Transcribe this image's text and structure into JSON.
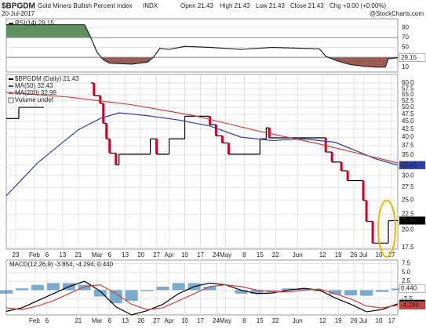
{
  "header": {
    "title": "$BPGDM",
    "subtitle": "Gold Miners Bullish Percent Index",
    "exchange": "INDX",
    "date": "20-Jul-2017",
    "quote": [
      "Open 21.43",
      "High 21.43",
      "Low 21.43",
      "Close 21.43",
      "Chg +0.00 (+0.00%)"
    ],
    "credit": "@StockCharts.com"
  },
  "chart_data": [
    {
      "type": "line",
      "xlim": [
        0,
        125
      ],
      "ylim": [
        0,
        108
      ],
      "yticks": [
        10,
        30,
        50,
        70,
        90
      ],
      "grid": true,
      "series": [
        {
          "name": "RSI(14) 29.15",
          "color": "#222222",
          "style": "line",
          "x": [
            0,
            10,
            25,
            27,
            29,
            31,
            33,
            40,
            45,
            47,
            49,
            52,
            57,
            65,
            75,
            85,
            95,
            100,
            102,
            106,
            110,
            114,
            118,
            121,
            122,
            125
          ],
          "values": [
            96,
            96,
            96,
            70,
            40,
            25,
            18,
            16,
            20,
            30,
            48,
            46,
            52,
            50,
            46,
            50,
            48,
            47,
            32,
            22,
            15,
            12,
            10,
            10,
            27,
            29.15
          ]
        }
      ],
      "fill_above": {
        "level": 70,
        "color": "#5e8f5e"
      },
      "fill_below": {
        "level": 30,
        "color": "#9c5b52"
      },
      "badges": [
        {
          "value": 29.15,
          "label": "29.15",
          "color": "#ffffff",
          "text_color": "#000000"
        }
      ]
    },
    {
      "type": "line",
      "log_scale": true,
      "xlim": [
        0,
        125
      ],
      "ylim": [
        17.3,
        64
      ],
      "grid": true,
      "yticks": [
        17.5,
        {
          "value": 20,
          "label": "20.0"
        },
        22.5,
        {
          "value": 25,
          "label": "25.0"
        },
        27.5,
        {
          "value": 30,
          "label": "30.0"
        },
        32.5,
        {
          "value": 35,
          "label": "35.0"
        },
        37.5,
        {
          "value": 40,
          "label": "40.0"
        },
        42.5,
        {
          "value": 45,
          "label": "45.0"
        },
        47.5,
        {
          "value": 50,
          "label": "50.0"
        },
        52.5,
        {
          "value": 55,
          "label": "55.0"
        },
        57.5,
        {
          "value": 60,
          "label": "60.0"
        }
      ],
      "xticks": [
        {
          "value": 3,
          "label": "23"
        },
        {
          "value": 9,
          "label": "Feb"
        },
        {
          "value": 13,
          "label": "6"
        },
        {
          "value": 18,
          "label": "13"
        },
        {
          "value": 23,
          "label": "21"
        },
        {
          "value": 29,
          "label": "Mar"
        },
        {
          "value": 33,
          "label": "6"
        },
        {
          "value": 38,
          "label": "13"
        },
        {
          "value": 43,
          "label": "20"
        },
        {
          "value": 48,
          "label": "27"
        },
        {
          "value": 52,
          "label": "Apr"
        },
        {
          "value": 57,
          "label": "10"
        },
        {
          "value": 62,
          "label": "17"
        },
        {
          "value": 67,
          "label": "24"
        },
        {
          "value": 70,
          "label": "May"
        },
        {
          "value": 76,
          "label": "8"
        },
        {
          "value": 81,
          "label": "15"
        },
        {
          "value": 86,
          "label": "22"
        },
        {
          "value": 93,
          "label": "Jun"
        },
        {
          "value": 101,
          "label": "12"
        },
        {
          "value": 106,
          "label": "19"
        },
        {
          "value": 111,
          "label": "26"
        },
        {
          "value": 114,
          "label": "Jul"
        },
        {
          "value": 119,
          "label": "10"
        },
        {
          "value": 123,
          "label": "17"
        }
      ],
      "series": [
        {
          "name": "$BPGDM (Daily) 21.43",
          "color": "#000000",
          "down_color": "#cc0022",
          "style": "step",
          "x": [
            0,
            4,
            12,
            27,
            28,
            30,
            31,
            32,
            33,
            35,
            36,
            46,
            48,
            52,
            57,
            65,
            67,
            69,
            71,
            81,
            83,
            84,
            102,
            104,
            107,
            109,
            114,
            115,
            117,
            122,
            123
          ],
          "values": [
            46,
            50,
            null,
            60,
            54.6,
            51.5,
            44.4,
            39.5,
            35.5,
            32.5,
            35.2,
            39.5,
            35.2,
            39.5,
            46.8,
            43.9,
            40.4,
            38.3,
            35.2,
            39.5,
            42.9,
            39.8,
            35.8,
            33.2,
            31.1,
            28.9,
            24.9,
            21.3,
            18.1,
            21.4,
            21.43
          ]
        },
        {
          "name": "MA(50) 32.43",
          "color": "#2b3fa8",
          "style": "line",
          "x": [
            0,
            10,
            23,
            30,
            36,
            45,
            55,
            65,
            75,
            85,
            95,
            105,
            112,
            118,
            125
          ],
          "values": [
            25.8,
            33,
            42.3,
            46,
            48,
            47,
            45.5,
            43.5,
            40,
            39,
            39.5,
            38.5,
            36,
            34,
            32.43
          ]
        },
        {
          "name": "MA(200) 32.98",
          "color": "#d04040",
          "style": "line",
          "x": [
            0,
            20,
            40,
            60,
            80,
            100,
            112,
            125
          ],
          "values": [
            56,
            54,
            51,
            47,
            42,
            38,
            35.5,
            32.98
          ]
        }
      ],
      "legend_extra": [
        "Volume undef"
      ],
      "badges": [
        {
          "value": 32.43,
          "label": "32.43",
          "color": "#2b3fa8",
          "text_color": "#ffffff"
        },
        {
          "value": 21.43,
          "label": "21.43",
          "color": "#000000",
          "text_color": "#ffffff"
        }
      ]
    },
    {
      "type": "line",
      "label": "MACD(12,26,9) -3.854, -4.294, 0.440",
      "xlim": [
        0,
        125
      ],
      "ylim": [
        -7,
        8.5
      ],
      "grid": true,
      "yticks": [
        7.5,
        {
          "value": 5,
          "label": "5.0"
        },
        2.5,
        {
          "value": 0,
          "label": "0.0"
        },
        -2.5,
        {
          "value": -5,
          "label": "-5.0"
        }
      ],
      "xticks": [
        {
          "value": 9,
          "label": "Feb"
        },
        {
          "value": 13,
          "label": "6"
        },
        {
          "value": 23,
          "label": "21"
        },
        {
          "value": 29,
          "label": "Mar"
        },
        {
          "value": 33,
          "label": "6"
        },
        {
          "value": 38,
          "label": "13"
        },
        {
          "value": 43,
          "label": "20"
        },
        {
          "value": 48,
          "label": "27"
        },
        {
          "value": 52,
          "label": "Apr"
        },
        {
          "value": 57,
          "label": "10"
        },
        {
          "value": 62,
          "label": "17"
        },
        {
          "value": 67,
          "label": "24"
        },
        {
          "value": 70,
          "label": "May"
        },
        {
          "value": 76,
          "label": "8"
        },
        {
          "value": 81,
          "label": "15"
        },
        {
          "value": 86,
          "label": "22"
        },
        {
          "value": 93,
          "label": "Jun"
        },
        {
          "value": 101,
          "label": "12"
        },
        {
          "value": 106,
          "label": "19"
        },
        {
          "value": 111,
          "label": "26"
        },
        {
          "value": 114,
          "label": "Jul"
        },
        {
          "value": 119,
          "label": "10"
        },
        {
          "value": 123,
          "label": "17"
        }
      ],
      "histogram": {
        "color": "#4f8fc0",
        "x": [
          0,
          5,
          10,
          15,
          20,
          25,
          30,
          35,
          40,
          45,
          50,
          55,
          60,
          65,
          70,
          75,
          80,
          85,
          90,
          95,
          100,
          105,
          110,
          115,
          120,
          125
        ],
        "values": [
          -1,
          0.5,
          1.5,
          2,
          2,
          1.5,
          -1.8,
          -3.7,
          -3,
          -0.3,
          1,
          2,
          2,
          1,
          0,
          -1,
          -1,
          -0.3,
          0.5,
          0.5,
          -0.3,
          -1.2,
          -1.5,
          -1.6,
          -0.5,
          0.44
        ]
      },
      "series": [
        {
          "color": "#000000",
          "style": "line",
          "x": [
            0,
            5,
            10,
            15,
            20,
            25,
            30,
            35,
            40,
            45,
            50,
            55,
            60,
            65,
            70,
            75,
            80,
            85,
            90,
            95,
            100,
            105,
            110,
            115,
            120,
            125
          ],
          "values": [
            -6,
            -5,
            -3,
            -1,
            1,
            2.5,
            -0.3,
            -4.7,
            -7,
            -5.8,
            -4,
            -1,
            1,
            2,
            1.5,
            0,
            -1,
            -0.8,
            0,
            0.5,
            0,
            -2.2,
            -4,
            -6.1,
            -5.5,
            -3.854
          ]
        },
        {
          "color": "#d04040",
          "style": "line",
          "x": [
            0,
            5,
            10,
            15,
            20,
            25,
            30,
            35,
            40,
            45,
            50,
            55,
            60,
            65,
            70,
            75,
            80,
            85,
            90,
            95,
            100,
            105,
            110,
            115,
            120,
            125
          ],
          "values": [
            -5,
            -5.5,
            -4.5,
            -3,
            -1,
            1,
            1.5,
            -1,
            -4,
            -5.5,
            -5,
            -3,
            -1,
            1,
            1.5,
            1,
            0,
            -0.5,
            -0.5,
            0,
            0.3,
            -1,
            -2.5,
            -4.5,
            -5,
            -4.294
          ]
        }
      ],
      "badges": [
        {
          "value": 0.44,
          "label": "0.440",
          "color": "#ffffff",
          "text_color": "#4f8fc0"
        },
        {
          "value": -3.854,
          "label": "-3.854",
          "color": "#000000",
          "text_color": "#ffffff"
        },
        {
          "value": -4.294,
          "label": "-4.294",
          "color": "#d04040",
          "text_color": "#ffffff"
        }
      ]
    }
  ]
}
